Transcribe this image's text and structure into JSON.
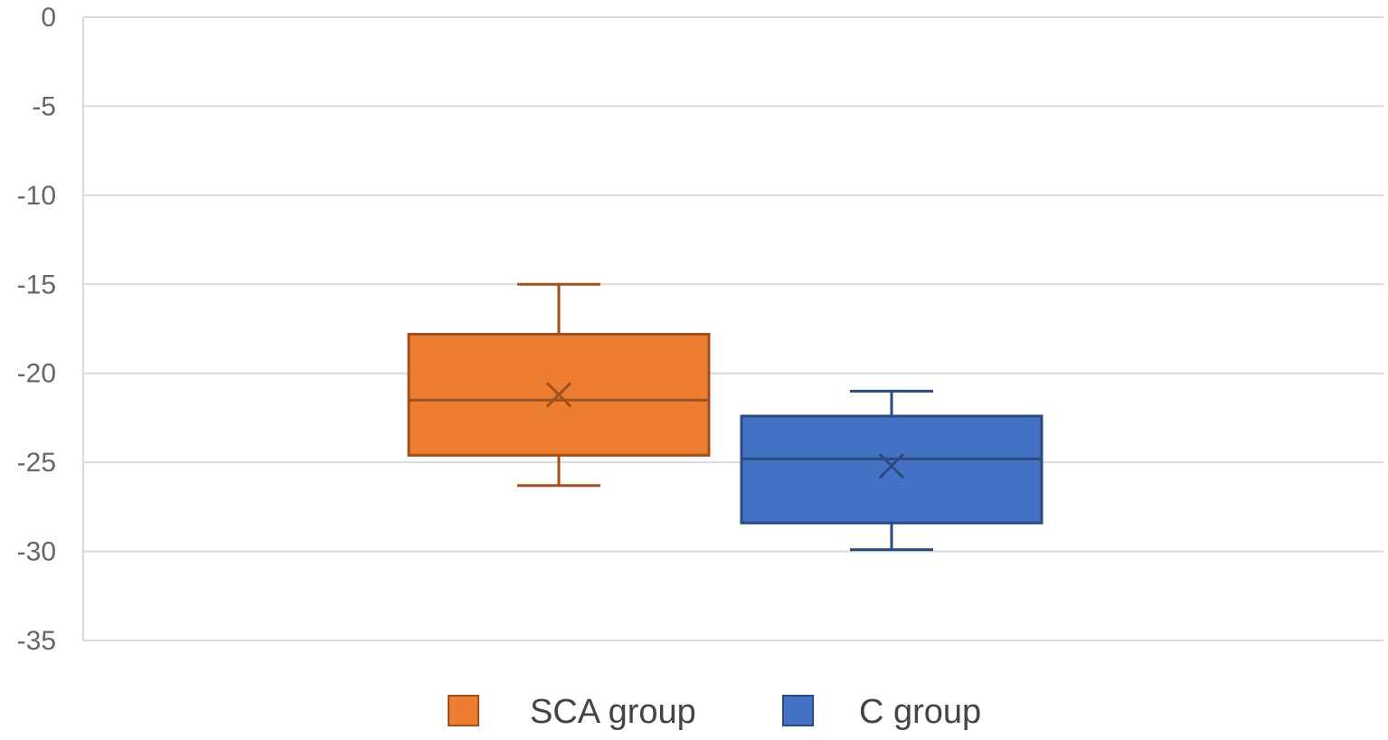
{
  "chart_data": {
    "type": "box",
    "title": "",
    "xlabel": "",
    "ylabel": "",
    "ylim": [
      -35,
      0
    ],
    "yticks": [
      0,
      -5,
      -10,
      -15,
      -20,
      -25,
      -30,
      -35
    ],
    "ytick_labels": [
      "0",
      "-5",
      "-10",
      "-15",
      "-20",
      "-25",
      "-30",
      "-35"
    ],
    "grid": true,
    "legend_position": "bottom",
    "series": [
      {
        "name": "SCA group",
        "color": "#ed7d31",
        "stroke": "#a0501c",
        "min": -26.3,
        "q1": -24.6,
        "median": -21.5,
        "mean": -21.2,
        "q3": -17.8,
        "max": -15.0
      },
      {
        "name": "C group",
        "color": "#4472c4",
        "stroke": "#2a4a80",
        "min": -29.9,
        "q1": -28.4,
        "median": -24.8,
        "mean": -25.2,
        "q3": -22.4,
        "max": -21.0
      }
    ]
  }
}
